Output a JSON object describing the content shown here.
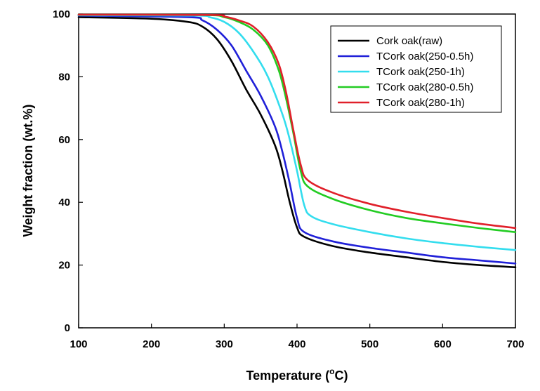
{
  "chart_data": {
    "type": "line",
    "title": "",
    "xlabel": "Temperature (",
    "xlabel_sup": "o",
    "xlabel_unit": "C)",
    "ylabel": "Weight fraction (wt.%)",
    "xlim": [
      100,
      700
    ],
    "ylim": [
      0,
      100
    ],
    "xticks": [
      100,
      200,
      300,
      400,
      500,
      600,
      700
    ],
    "yticks": [
      0,
      20,
      40,
      60,
      80,
      100
    ],
    "grid": false,
    "legend_position": "top-right",
    "series": [
      {
        "name": "Cork oak(raw)",
        "color": "#000000",
        "points": [
          [
            100,
            99
          ],
          [
            200,
            98.5
          ],
          [
            250,
            97.5
          ],
          [
            270,
            96
          ],
          [
            290,
            92
          ],
          [
            310,
            85
          ],
          [
            330,
            76
          ],
          [
            350,
            68
          ],
          [
            370,
            58
          ],
          [
            380,
            50
          ],
          [
            390,
            40
          ],
          [
            400,
            32
          ],
          [
            410,
            29
          ],
          [
            450,
            26
          ],
          [
            500,
            24
          ],
          [
            550,
            22.5
          ],
          [
            600,
            21
          ],
          [
            650,
            20
          ],
          [
            700,
            19.3
          ]
        ]
      },
      {
        "name": "TCork oak(250-0.5h)",
        "color": "#2020d8",
        "points": [
          [
            100,
            99.5
          ],
          [
            250,
            99
          ],
          [
            270,
            98
          ],
          [
            290,
            95
          ],
          [
            310,
            90
          ],
          [
            330,
            82
          ],
          [
            350,
            74
          ],
          [
            370,
            64
          ],
          [
            380,
            56
          ],
          [
            390,
            46
          ],
          [
            400,
            35
          ],
          [
            410,
            30.5
          ],
          [
            450,
            27.5
          ],
          [
            500,
            25.5
          ],
          [
            550,
            24
          ],
          [
            600,
            22.5
          ],
          [
            650,
            21.5
          ],
          [
            700,
            20.5
          ]
        ]
      },
      {
        "name": "TCork oak(250-1h)",
        "color": "#33ddee",
        "points": [
          [
            100,
            99.6
          ],
          [
            260,
            99.5
          ],
          [
            280,
            99
          ],
          [
            300,
            97.5
          ],
          [
            320,
            94
          ],
          [
            340,
            88
          ],
          [
            360,
            80
          ],
          [
            380,
            68
          ],
          [
            390,
            60
          ],
          [
            400,
            50
          ],
          [
            410,
            39
          ],
          [
            420,
            35.5
          ],
          [
            450,
            33
          ],
          [
            500,
            30.5
          ],
          [
            550,
            28.5
          ],
          [
            600,
            27
          ],
          [
            650,
            25.8
          ],
          [
            700,
            24.8
          ]
        ]
      },
      {
        "name": "TCork oak(280-0.5h)",
        "color": "#22cc22",
        "points": [
          [
            100,
            99.8
          ],
          [
            270,
            99.7
          ],
          [
            300,
            99
          ],
          [
            320,
            97.5
          ],
          [
            340,
            95
          ],
          [
            360,
            90
          ],
          [
            375,
            82
          ],
          [
            385,
            73
          ],
          [
            395,
            62
          ],
          [
            405,
            50
          ],
          [
            415,
            45
          ],
          [
            450,
            41
          ],
          [
            500,
            37.5
          ],
          [
            550,
            35
          ],
          [
            600,
            33.3
          ],
          [
            650,
            31.8
          ],
          [
            700,
            30.5
          ]
        ]
      },
      {
        "name": "TCork oak(280-1h)",
        "color": "#e0202a",
        "points": [
          [
            100,
            99.8
          ],
          [
            280,
            99.7
          ],
          [
            300,
            99.2
          ],
          [
            320,
            98
          ],
          [
            340,
            96
          ],
          [
            360,
            91
          ],
          [
            375,
            84
          ],
          [
            385,
            75
          ],
          [
            395,
            63
          ],
          [
            405,
            52
          ],
          [
            415,
            47
          ],
          [
            450,
            43
          ],
          [
            500,
            39.5
          ],
          [
            550,
            37
          ],
          [
            600,
            35
          ],
          [
            650,
            33.2
          ],
          [
            700,
            31.8
          ]
        ]
      }
    ]
  }
}
